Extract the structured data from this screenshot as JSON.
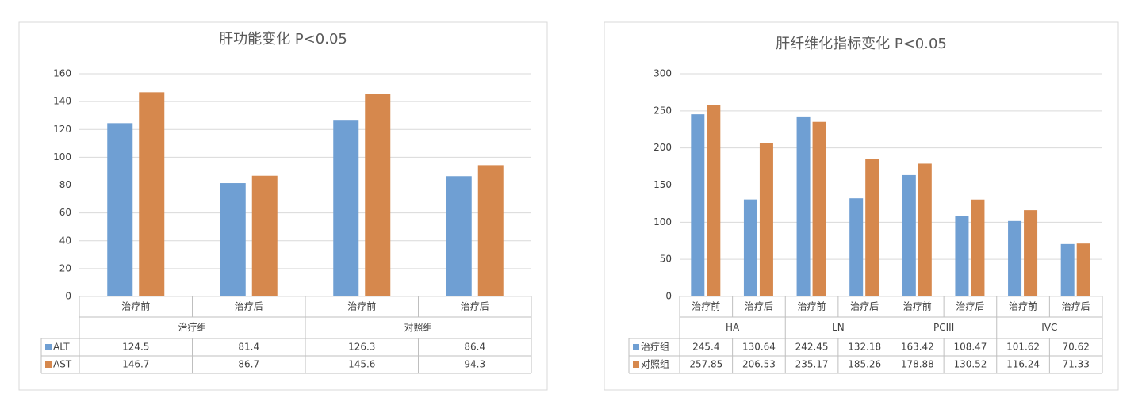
{
  "chart_data": [
    {
      "type": "bar",
      "title": "肝功能变化   P<0.05",
      "categories": [
        "治疗前",
        "治疗后",
        "治疗前",
        "治疗后"
      ],
      "groups": [
        "治疗组",
        "对照组"
      ],
      "series": [
        {
          "name": "ALT",
          "color": "#6f9fd3",
          "values": [
            124.5,
            81.4,
            126.3,
            86.4
          ]
        },
        {
          "name": "AST",
          "color": "#d6884d",
          "values": [
            146.7,
            86.7,
            145.6,
            94.3
          ]
        }
      ],
      "ylim": [
        0,
        160
      ],
      "yticks": [
        0,
        20,
        40,
        60,
        80,
        100,
        120,
        140,
        160
      ],
      "grid": true
    },
    {
      "type": "bar",
      "title": "肝纤维化指标变化    P<0.05",
      "categories": [
        "治疗前",
        "治疗后",
        "治疗前",
        "治疗后",
        "治疗前",
        "治疗后",
        "治疗前",
        "治疗后"
      ],
      "groups": [
        "HA",
        "LN",
        "PCIII",
        "IVC"
      ],
      "series": [
        {
          "name": "治疗组",
          "color": "#6f9fd3",
          "values": [
            245.4,
            130.64,
            242.45,
            132.18,
            163.42,
            108.47,
            101.62,
            70.62
          ]
        },
        {
          "name": "对照组",
          "color": "#d6884d",
          "values": [
            257.85,
            206.53,
            235.17,
            185.26,
            178.88,
            130.52,
            116.24,
            71.33
          ]
        }
      ],
      "ylim": [
        0,
        300
      ],
      "yticks": [
        0,
        50,
        100,
        150,
        200,
        250,
        300
      ],
      "grid": true
    }
  ]
}
